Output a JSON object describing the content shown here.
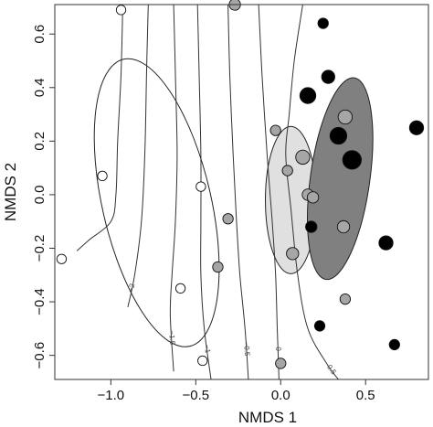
{
  "chart_data": {
    "type": "scatter",
    "xlabel": "NMDS 1",
    "ylabel": "NMDS 2",
    "xlim": [
      -1.33,
      0.87
    ],
    "ylim": [
      -0.69,
      0.71
    ],
    "x_ticks": [
      {
        "v": -1.0,
        "label": "−1.0"
      },
      {
        "v": -0.5,
        "label": "−0.5"
      },
      {
        "v": 0.0,
        "label": "0.0"
      },
      {
        "v": 0.5,
        "label": "0.5"
      }
    ],
    "y_ticks": [
      {
        "v": -0.6,
        "label": "−0.6"
      },
      {
        "v": -0.4,
        "label": "−0.4"
      },
      {
        "v": -0.2,
        "label": "−0.2"
      },
      {
        "v": 0.0,
        "label": "0.0"
      },
      {
        "v": 0.2,
        "label": "0.2"
      },
      {
        "v": 0.4,
        "label": "0.4"
      },
      {
        "v": 0.6,
        "label": "0.6"
      }
    ],
    "series": [
      {
        "color": "#ffffff",
        "points": [
          {
            "x": -0.94,
            "y": 0.69,
            "size": 0.2
          },
          {
            "x": -1.05,
            "y": 0.07,
            "size": 0.2
          },
          {
            "x": -1.29,
            "y": -0.24,
            "size": 0.2
          },
          {
            "x": -0.59,
            "y": -0.35,
            "size": 0.2
          },
          {
            "x": -0.47,
            "y": 0.03,
            "size": 0.2
          },
          {
            "x": -0.46,
            "y": -0.62,
            "size": 0.2
          }
        ]
      },
      {
        "color": "#a6a6a6",
        "points": [
          {
            "x": -0.27,
            "y": 0.71,
            "size": 0.3
          },
          {
            "x": -0.03,
            "y": 0.24,
            "size": 0.25
          },
          {
            "x": -0.31,
            "y": -0.09,
            "size": 0.25
          },
          {
            "x": -0.37,
            "y": -0.27,
            "size": 0.25
          },
          {
            "x": 0.04,
            "y": 0.09,
            "size": 0.25
          },
          {
            "x": 0.13,
            "y": 0.14,
            "size": 0.45
          },
          {
            "x": 0.16,
            "y": 0.0,
            "size": 0.3
          },
          {
            "x": 0.19,
            "y": -0.01,
            "size": 0.3
          },
          {
            "x": 0.07,
            "y": -0.22,
            "size": 0.35
          },
          {
            "x": 0.38,
            "y": 0.29,
            "size": 0.45
          },
          {
            "x": 0.37,
            "y": -0.12,
            "size": 0.35
          },
          {
            "x": 0.38,
            "y": -0.39,
            "size": 0.25
          },
          {
            "x": 0.0,
            "y": -0.63,
            "size": 0.25
          }
        ]
      },
      {
        "color": "#000000",
        "points": [
          {
            "x": 0.25,
            "y": 0.64,
            "size": 0.25
          },
          {
            "x": 0.28,
            "y": 0.44,
            "size": 0.4
          },
          {
            "x": 0.16,
            "y": 0.37,
            "size": 0.55
          },
          {
            "x": 0.34,
            "y": 0.22,
            "size": 0.6
          },
          {
            "x": 0.42,
            "y": 0.13,
            "size": 0.7
          },
          {
            "x": 0.18,
            "y": -0.12,
            "size": 0.3
          },
          {
            "x": 0.62,
            "y": -0.18,
            "size": 0.45
          },
          {
            "x": 0.8,
            "y": 0.25,
            "size": 0.45
          },
          {
            "x": 0.23,
            "y": -0.49,
            "size": 0.25
          },
          {
            "x": 0.67,
            "y": -0.56,
            "size": 0.25
          }
        ]
      }
    ],
    "ellipses": [
      {
        "cx": -0.73,
        "cy": -0.03,
        "rx": 0.32,
        "ry": 0.55,
        "angle": -13,
        "fill": "none"
      },
      {
        "cx": 0.06,
        "cy": -0.02,
        "rx": 0.15,
        "ry": 0.275,
        "angle": 0,
        "fill": "#e0e0e0"
      },
      {
        "cx": 0.35,
        "cy": 0.06,
        "rx": 0.175,
        "ry": 0.38,
        "angle": 8,
        "fill": "#808080"
      }
    ],
    "contours": [
      {
        "label": "",
        "points": [
          [
            -0.93,
            0.71
          ],
          [
            -0.94,
            0.45
          ],
          [
            -0.96,
            0.2
          ],
          [
            -0.97,
            0.0
          ],
          [
            -1.0,
            -0.1
          ],
          [
            -1.13,
            -0.17
          ],
          [
            -1.2,
            -0.21
          ]
        ]
      },
      {
        "label": "−2",
        "points": [
          [
            -0.78,
            0.71
          ],
          [
            -0.79,
            0.45
          ],
          [
            -0.8,
            0.15
          ],
          [
            -0.82,
            -0.1
          ],
          [
            -0.86,
            -0.3
          ],
          [
            -0.9,
            -0.42
          ]
        ]
      },
      {
        "label": "−1.5",
        "points": [
          [
            -0.63,
            0.71
          ],
          [
            -0.62,
            0.45
          ],
          [
            -0.61,
            0.15
          ],
          [
            -0.62,
            -0.1
          ],
          [
            -0.64,
            -0.3
          ],
          [
            -0.65,
            -0.45
          ],
          [
            -0.63,
            -0.66
          ]
        ]
      },
      {
        "label": "−1",
        "points": [
          [
            -0.49,
            0.71
          ],
          [
            -0.48,
            0.45
          ],
          [
            -0.47,
            0.15
          ],
          [
            -0.47,
            -0.1
          ],
          [
            -0.47,
            -0.3
          ],
          [
            -0.45,
            -0.5
          ],
          [
            -0.41,
            -0.69
          ]
        ]
      },
      {
        "label": "−0.5",
        "points": [
          [
            -0.31,
            0.71
          ],
          [
            -0.3,
            0.45
          ],
          [
            -0.28,
            0.15
          ],
          [
            -0.26,
            -0.1
          ],
          [
            -0.24,
            -0.3
          ],
          [
            -0.21,
            -0.5
          ],
          [
            -0.19,
            -0.69
          ]
        ]
      },
      {
        "label": "0",
        "points": [
          [
            -0.13,
            0.71
          ],
          [
            -0.11,
            0.45
          ],
          [
            -0.08,
            0.15
          ],
          [
            -0.05,
            -0.1
          ],
          [
            -0.03,
            -0.3
          ],
          [
            -0.02,
            -0.5
          ],
          [
            -0.01,
            -0.69
          ]
        ]
      },
      {
        "label": "0.5",
        "points": [
          [
            0.13,
            0.71
          ],
          [
            0.08,
            0.5
          ],
          [
            0.05,
            0.3
          ],
          [
            0.03,
            0.15
          ],
          [
            0.06,
            -0.05
          ],
          [
            0.1,
            -0.3
          ],
          [
            0.16,
            -0.5
          ],
          [
            0.27,
            -0.63
          ],
          [
            0.34,
            -0.69
          ]
        ]
      }
    ]
  }
}
